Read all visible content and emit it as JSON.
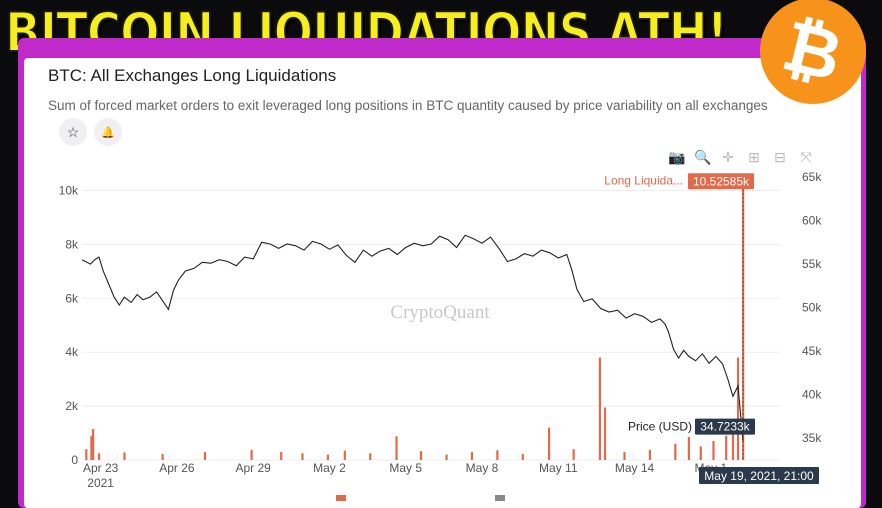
{
  "headline": "BITCOIN LIQUIDATIONS ATH!",
  "logo_glyph": "₿",
  "chart_header": {
    "title": "BTC: All Exchanges Long Liquidations",
    "subtitle": "Sum of forced market orders to exit leveraged long positions in BTC quantity caused by price variability on all exchanges"
  },
  "buttons": [
    {
      "icon": "star-icon",
      "glyph": "☆"
    },
    {
      "icon": "bell-icon",
      "glyph": "🔔"
    }
  ],
  "toolbar": [
    {
      "icon": "camera-icon",
      "glyph": "📷"
    },
    {
      "icon": "zoom-icon",
      "glyph": "🔍"
    },
    {
      "icon": "pan-icon",
      "glyph": "✛"
    },
    {
      "icon": "zoom-in-icon",
      "glyph": "⊞"
    },
    {
      "icon": "zoom-out-icon",
      "glyph": "⊟"
    },
    {
      "icon": "reset-icon",
      "glyph": "⤧"
    }
  ],
  "watermark": "CryptoQuant",
  "colors": {
    "liquidations": "#e06a4a",
    "price": "#222222",
    "tooltip_bg": "#2b3a4a",
    "accent": "#f7931a",
    "frame": "#c02acb"
  },
  "chart_data": {
    "type": "bar+line",
    "x_tick_labels": [
      "Apr 23",
      "Apr 26",
      "Apr 29",
      "May 2",
      "May 5",
      "May 8",
      "May 11",
      "May 14",
      "May 1"
    ],
    "x_year_label": "2021",
    "y_left": {
      "ticks": [
        "0",
        "2k",
        "4k",
        "6k",
        "8k",
        "10k"
      ],
      "range": [
        0,
        10500
      ]
    },
    "y_right": {
      "ticks": [
        "35k",
        "40k",
        "45k",
        "50k",
        "55k",
        "60k",
        "65k"
      ],
      "range": [
        32500,
        65000
      ]
    },
    "liquidation_spikes": [
      {
        "x": 0.5,
        "v": 400
      },
      {
        "x": 1.1,
        "v": 900
      },
      {
        "x": 1.3,
        "v": 1150
      },
      {
        "x": 2.0,
        "v": 250
      },
      {
        "x": 5.0,
        "v": 280
      },
      {
        "x": 9.5,
        "v": 220
      },
      {
        "x": 14.5,
        "v": 300
      },
      {
        "x": 20.0,
        "v": 380
      },
      {
        "x": 23.5,
        "v": 300
      },
      {
        "x": 26.0,
        "v": 250
      },
      {
        "x": 29.0,
        "v": 200
      },
      {
        "x": 31.0,
        "v": 350
      },
      {
        "x": 34.0,
        "v": 250
      },
      {
        "x": 37.1,
        "v": 880
      },
      {
        "x": 40.0,
        "v": 330
      },
      {
        "x": 43.0,
        "v": 200
      },
      {
        "x": 46.0,
        "v": 300
      },
      {
        "x": 49.0,
        "v": 360
      },
      {
        "x": 52.0,
        "v": 220
      },
      {
        "x": 55.1,
        "v": 1200
      },
      {
        "x": 58.0,
        "v": 400
      },
      {
        "x": 61.1,
        "v": 3800
      },
      {
        "x": 61.7,
        "v": 1950
      },
      {
        "x": 64.0,
        "v": 300
      },
      {
        "x": 67.0,
        "v": 380
      },
      {
        "x": 70.0,
        "v": 600
      },
      {
        "x": 71.6,
        "v": 850
      },
      {
        "x": 73.0,
        "v": 500
      },
      {
        "x": 74.5,
        "v": 700
      },
      {
        "x": 76.0,
        "v": 900
      },
      {
        "x": 76.8,
        "v": 1400
      },
      {
        "x": 77.4,
        "v": 3800
      },
      {
        "x": 78.0,
        "v": 10525.85
      }
    ],
    "price_series": [
      [
        0,
        55500
      ],
      [
        1,
        55000
      ],
      [
        1.5,
        55500
      ],
      [
        2,
        55800
      ],
      [
        2.5,
        54200
      ],
      [
        3.2,
        52600
      ],
      [
        3.8,
        51200
      ],
      [
        4.4,
        50300
      ],
      [
        5.0,
        51200
      ],
      [
        5.8,
        50600
      ],
      [
        6.5,
        51500
      ],
      [
        7.2,
        50900
      ],
      [
        8.0,
        51200
      ],
      [
        8.8,
        51800
      ],
      [
        9.5,
        50800
      ],
      [
        10.2,
        49800
      ],
      [
        10.8,
        52000
      ],
      [
        11.4,
        53200
      ],
      [
        12.2,
        54200
      ],
      [
        13.2,
        54500
      ],
      [
        14.2,
        55200
      ],
      [
        15.2,
        55100
      ],
      [
        16.2,
        55500
      ],
      [
        17.2,
        55300
      ],
      [
        18.2,
        54800
      ],
      [
        19.2,
        55800
      ],
      [
        20.2,
        55600
      ],
      [
        21.2,
        57500
      ],
      [
        22.2,
        57300
      ],
      [
        23.2,
        56800
      ],
      [
        24.2,
        57300
      ],
      [
        25.2,
        57100
      ],
      [
        26.2,
        56600
      ],
      [
        27.2,
        57600
      ],
      [
        28.2,
        57300
      ],
      [
        29.2,
        56700
      ],
      [
        30.2,
        57200
      ],
      [
        31.2,
        56000
      ],
      [
        32.2,
        55200
      ],
      [
        33.2,
        56600
      ],
      [
        34.2,
        55900
      ],
      [
        35.2,
        56500
      ],
      [
        36.2,
        56800
      ],
      [
        37.2,
        56100
      ],
      [
        38.2,
        56900
      ],
      [
        39.2,
        57400
      ],
      [
        40.2,
        57100
      ],
      [
        41.2,
        57300
      ],
      [
        42.2,
        58200
      ],
      [
        43.2,
        57800
      ],
      [
        44.2,
        56900
      ],
      [
        45.2,
        58300
      ],
      [
        46.2,
        57900
      ],
      [
        47.2,
        57400
      ],
      [
        48.2,
        58100
      ],
      [
        49.2,
        56800
      ],
      [
        50.2,
        55300
      ],
      [
        51.2,
        55600
      ],
      [
        52.2,
        56200
      ],
      [
        53.2,
        55900
      ],
      [
        54.2,
        56600
      ],
      [
        55.2,
        56300
      ],
      [
        56.2,
        55700
      ],
      [
        57.2,
        56100
      ],
      [
        57.8,
        54300
      ],
      [
        58.4,
        52100
      ],
      [
        59.2,
        50700
      ],
      [
        60.2,
        51000
      ],
      [
        61.2,
        49900
      ],
      [
        62.2,
        49500
      ],
      [
        63.2,
        49700
      ],
      [
        64.2,
        48800
      ],
      [
        65.2,
        49300
      ],
      [
        66.2,
        49000
      ],
      [
        67.2,
        48300
      ],
      [
        68.2,
        48700
      ],
      [
        68.8,
        48100
      ],
      [
        69.2,
        47200
      ],
      [
        69.8,
        45200
      ],
      [
        70.4,
        44200
      ],
      [
        71.0,
        45100
      ],
      [
        71.6,
        44400
      ],
      [
        72.4,
        43900
      ],
      [
        73.2,
        44700
      ],
      [
        74.0,
        43600
      ],
      [
        74.8,
        44400
      ],
      [
        75.6,
        43500
      ],
      [
        76.2,
        41800
      ],
      [
        76.8,
        39800
      ],
      [
        77.4,
        41000
      ],
      [
        78.0,
        34723.3
      ]
    ],
    "x_domain": [
      0,
      80
    ],
    "tooltips": {
      "liquidation": {
        "series": "Long Liquida...",
        "value": "10.52585k"
      },
      "price": {
        "series": "Price (USD)",
        "value": "34.7233k"
      },
      "date": "May 19, 2021, 21:00"
    }
  }
}
